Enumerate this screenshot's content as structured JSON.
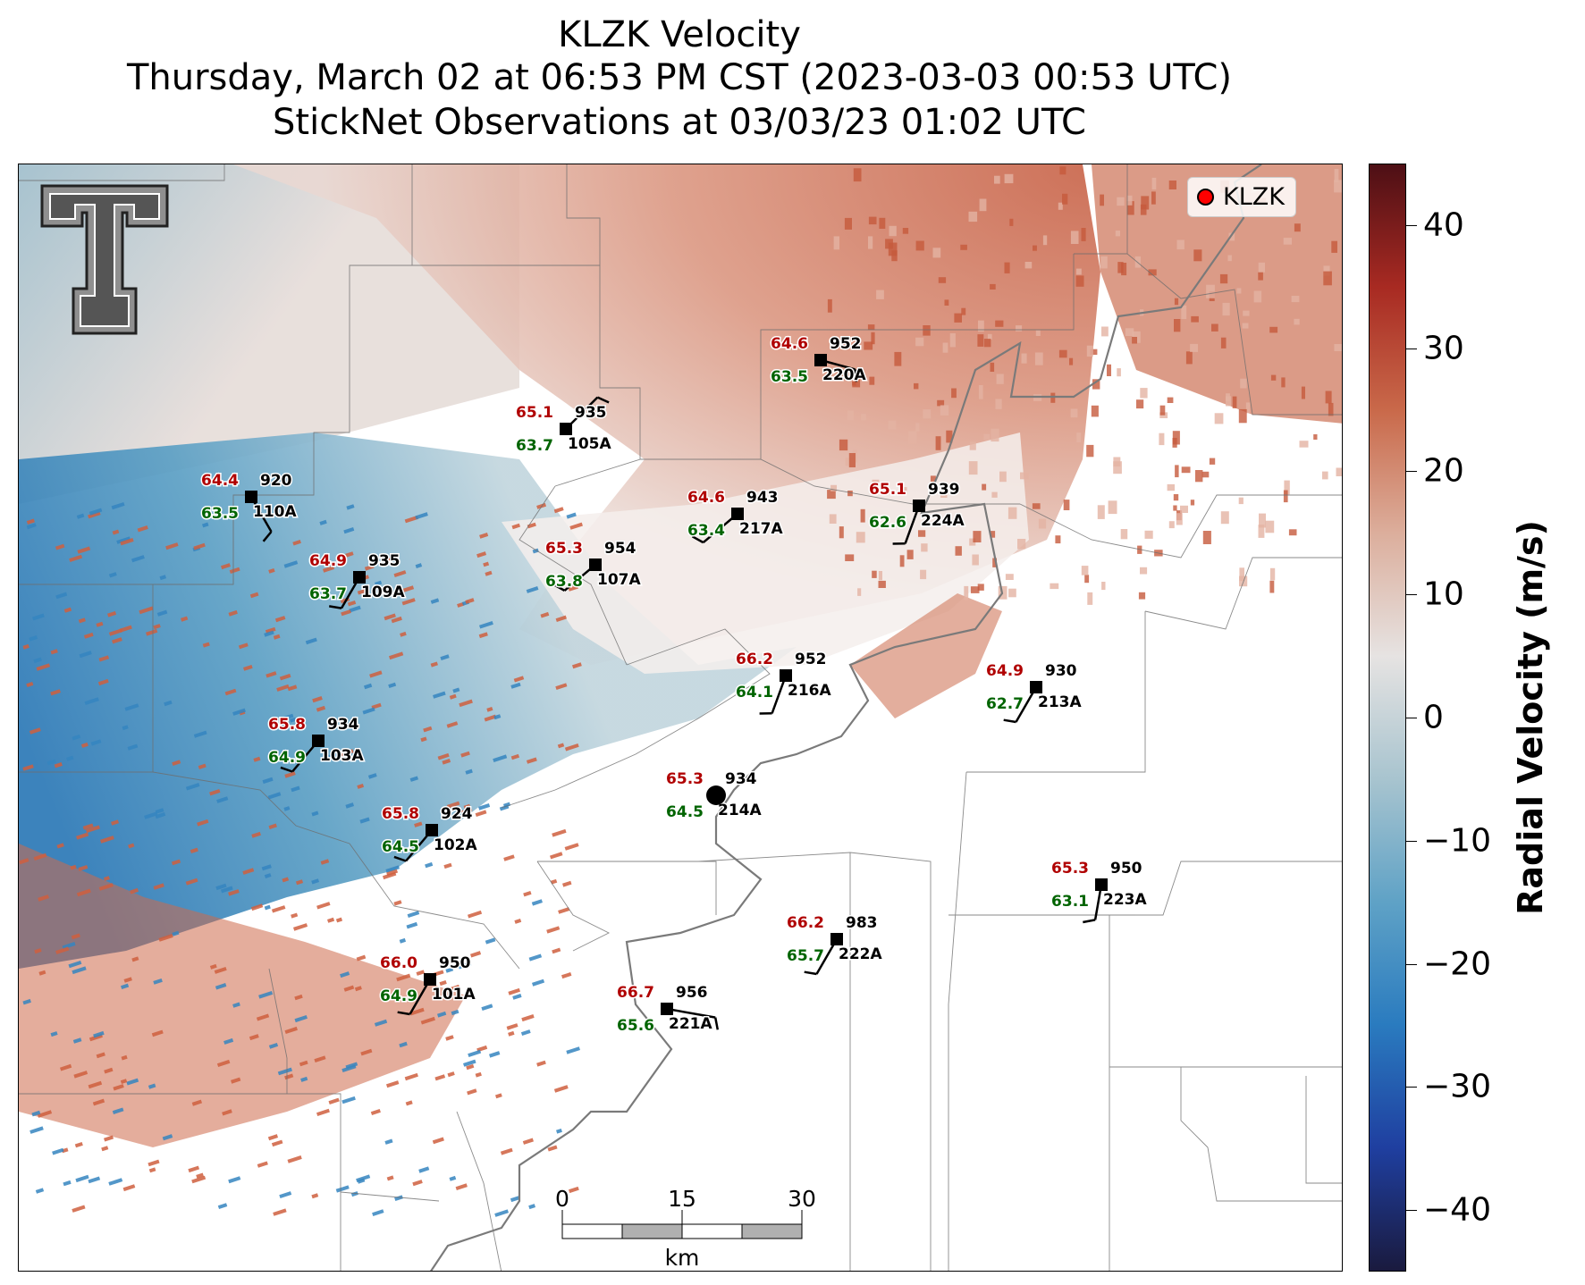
{
  "title": {
    "line1": "KLZK Velocity",
    "line2": "Thursday, March 02 at 06:53 PM CST (2023-03-03 00:53 UTC)",
    "line3": "StickNet Observations at 03/03/23 01:02 UTC"
  },
  "legend": {
    "label": "KLZK",
    "marker_color": "#ff0000"
  },
  "colorbar": {
    "label": "Radial Velocity (m/s)",
    "min": -45,
    "max": 45,
    "ticks": [
      "40",
      "30",
      "20",
      "10",
      "0",
      "−10",
      "−20",
      "−30",
      "−40"
    ],
    "tick_values": [
      40,
      30,
      20,
      10,
      0,
      -10,
      -20,
      -30,
      -40
    ],
    "colors": [
      "#1a1a3e",
      "#1f3fa0",
      "#2a7bbf",
      "#5fa2c6",
      "#a8c4cf",
      "#e6e3e2",
      "#dcae9c",
      "#c9694a",
      "#a82a22",
      "#4d0f15"
    ]
  },
  "scale_bar": {
    "ticks": [
      "0",
      "15",
      "30"
    ],
    "unit": "km"
  },
  "logo": {
    "text": "TT"
  },
  "stations": [
    {
      "id": "220A",
      "temp": "64.6",
      "dew": "63.5",
      "pres": "952"
    },
    {
      "id": "105A",
      "temp": "65.1",
      "dew": "63.7",
      "pres": "935"
    },
    {
      "id": "110A",
      "temp": "64.4",
      "dew": "63.5",
      "pres": "920"
    },
    {
      "id": "217A",
      "temp": "64.6",
      "dew": "63.4",
      "pres": "943"
    },
    {
      "id": "224A",
      "temp": "65.1",
      "dew": "62.6",
      "pres": "939"
    },
    {
      "id": "107A",
      "temp": "65.3",
      "dew": "63.8",
      "pres": "954"
    },
    {
      "id": "109A",
      "temp": "64.9",
      "dew": "63.7",
      "pres": "935"
    },
    {
      "id": "216A",
      "temp": "66.2",
      "dew": "64.1",
      "pres": "952"
    },
    {
      "id": "213A",
      "temp": "64.9",
      "dew": "62.7",
      "pres": "930"
    },
    {
      "id": "103A",
      "temp": "65.8",
      "dew": "64.9",
      "pres": "934"
    },
    {
      "id": "214A",
      "temp": "65.3",
      "dew": "64.5",
      "pres": "934"
    },
    {
      "id": "102A",
      "temp": "65.8",
      "dew": "64.5",
      "pres": "924"
    },
    {
      "id": "223A",
      "temp": "65.3",
      "dew": "63.1",
      "pres": "950"
    },
    {
      "id": "222A",
      "temp": "66.2",
      "dew": "65.7",
      "pres": "983"
    },
    {
      "id": "101A",
      "temp": "66.0",
      "dew": "64.9",
      "pres": "950"
    },
    {
      "id": "221A",
      "temp": "66.7",
      "dew": "65.6",
      "pres": "956"
    }
  ],
  "label_colors": {
    "temp": "#b00000",
    "dew": "#006400",
    "pres": "#000000"
  }
}
